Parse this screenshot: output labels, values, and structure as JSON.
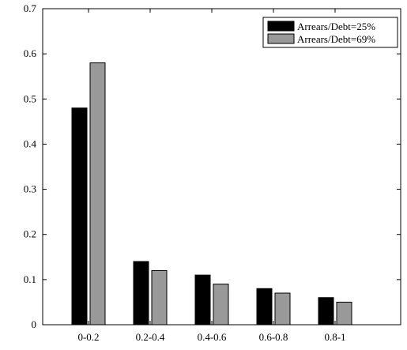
{
  "chart_data": {
    "type": "bar",
    "categories": [
      "0-0.2",
      "0.2-0.4",
      "0.4-0.6",
      "0.6-0.8",
      "0.8-1"
    ],
    "series": [
      {
        "name": "Arrears/Debt=25%",
        "color": "#000000",
        "values": [
          0.48,
          0.14,
          0.11,
          0.08,
          0.06
        ]
      },
      {
        "name": "Arrears/Debt=69%",
        "color": "#999999",
        "values": [
          0.58,
          0.12,
          0.09,
          0.07,
          0.05
        ]
      }
    ],
    "ylim": [
      0,
      0.7
    ],
    "yticks": [
      "0",
      "0.1",
      "0.2",
      "0.3",
      "0.4",
      "0.5",
      "0.6",
      "0.7"
    ],
    "legend_position": "top-right",
    "grid": false
  }
}
